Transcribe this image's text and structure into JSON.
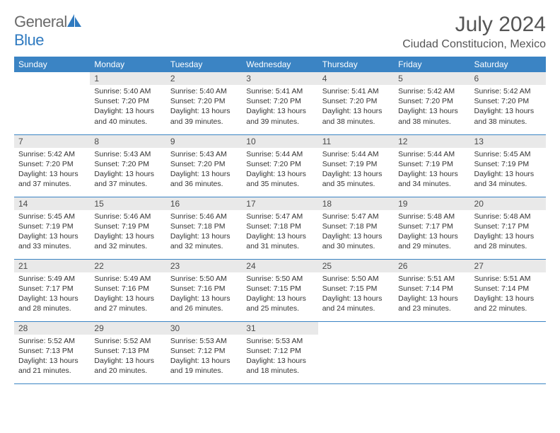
{
  "brand": {
    "part1": "General",
    "part2": "Blue"
  },
  "title": "July 2024",
  "location": "Ciudad Constitucion, Mexico",
  "colors": {
    "header_bg": "#3b84c4",
    "header_text": "#ffffff",
    "daynum_bg": "#e9e9e9",
    "border": "#3b84c4",
    "text": "#333333",
    "title_text": "#555555"
  },
  "weekdays": [
    "Sunday",
    "Monday",
    "Tuesday",
    "Wednesday",
    "Thursday",
    "Friday",
    "Saturday"
  ],
  "start_offset": 1,
  "days": [
    {
      "n": 1,
      "sr": "5:40 AM",
      "ss": "7:20 PM",
      "dl": "13 hours and 40 minutes."
    },
    {
      "n": 2,
      "sr": "5:40 AM",
      "ss": "7:20 PM",
      "dl": "13 hours and 39 minutes."
    },
    {
      "n": 3,
      "sr": "5:41 AM",
      "ss": "7:20 PM",
      "dl": "13 hours and 39 minutes."
    },
    {
      "n": 4,
      "sr": "5:41 AM",
      "ss": "7:20 PM",
      "dl": "13 hours and 38 minutes."
    },
    {
      "n": 5,
      "sr": "5:42 AM",
      "ss": "7:20 PM",
      "dl": "13 hours and 38 minutes."
    },
    {
      "n": 6,
      "sr": "5:42 AM",
      "ss": "7:20 PM",
      "dl": "13 hours and 38 minutes."
    },
    {
      "n": 7,
      "sr": "5:42 AM",
      "ss": "7:20 PM",
      "dl": "13 hours and 37 minutes."
    },
    {
      "n": 8,
      "sr": "5:43 AM",
      "ss": "7:20 PM",
      "dl": "13 hours and 37 minutes."
    },
    {
      "n": 9,
      "sr": "5:43 AM",
      "ss": "7:20 PM",
      "dl": "13 hours and 36 minutes."
    },
    {
      "n": 10,
      "sr": "5:44 AM",
      "ss": "7:20 PM",
      "dl": "13 hours and 35 minutes."
    },
    {
      "n": 11,
      "sr": "5:44 AM",
      "ss": "7:19 PM",
      "dl": "13 hours and 35 minutes."
    },
    {
      "n": 12,
      "sr": "5:44 AM",
      "ss": "7:19 PM",
      "dl": "13 hours and 34 minutes."
    },
    {
      "n": 13,
      "sr": "5:45 AM",
      "ss": "7:19 PM",
      "dl": "13 hours and 34 minutes."
    },
    {
      "n": 14,
      "sr": "5:45 AM",
      "ss": "7:19 PM",
      "dl": "13 hours and 33 minutes."
    },
    {
      "n": 15,
      "sr": "5:46 AM",
      "ss": "7:19 PM",
      "dl": "13 hours and 32 minutes."
    },
    {
      "n": 16,
      "sr": "5:46 AM",
      "ss": "7:18 PM",
      "dl": "13 hours and 32 minutes."
    },
    {
      "n": 17,
      "sr": "5:47 AM",
      "ss": "7:18 PM",
      "dl": "13 hours and 31 minutes."
    },
    {
      "n": 18,
      "sr": "5:47 AM",
      "ss": "7:18 PM",
      "dl": "13 hours and 30 minutes."
    },
    {
      "n": 19,
      "sr": "5:48 AM",
      "ss": "7:17 PM",
      "dl": "13 hours and 29 minutes."
    },
    {
      "n": 20,
      "sr": "5:48 AM",
      "ss": "7:17 PM",
      "dl": "13 hours and 28 minutes."
    },
    {
      "n": 21,
      "sr": "5:49 AM",
      "ss": "7:17 PM",
      "dl": "13 hours and 28 minutes."
    },
    {
      "n": 22,
      "sr": "5:49 AM",
      "ss": "7:16 PM",
      "dl": "13 hours and 27 minutes."
    },
    {
      "n": 23,
      "sr": "5:50 AM",
      "ss": "7:16 PM",
      "dl": "13 hours and 26 minutes."
    },
    {
      "n": 24,
      "sr": "5:50 AM",
      "ss": "7:15 PM",
      "dl": "13 hours and 25 minutes."
    },
    {
      "n": 25,
      "sr": "5:50 AM",
      "ss": "7:15 PM",
      "dl": "13 hours and 24 minutes."
    },
    {
      "n": 26,
      "sr": "5:51 AM",
      "ss": "7:14 PM",
      "dl": "13 hours and 23 minutes."
    },
    {
      "n": 27,
      "sr": "5:51 AM",
      "ss": "7:14 PM",
      "dl": "13 hours and 22 minutes."
    },
    {
      "n": 28,
      "sr": "5:52 AM",
      "ss": "7:13 PM",
      "dl": "13 hours and 21 minutes."
    },
    {
      "n": 29,
      "sr": "5:52 AM",
      "ss": "7:13 PM",
      "dl": "13 hours and 20 minutes."
    },
    {
      "n": 30,
      "sr": "5:53 AM",
      "ss": "7:12 PM",
      "dl": "13 hours and 19 minutes."
    },
    {
      "n": 31,
      "sr": "5:53 AM",
      "ss": "7:12 PM",
      "dl": "13 hours and 18 minutes."
    }
  ],
  "labels": {
    "sunrise": "Sunrise:",
    "sunset": "Sunset:",
    "daylight": "Daylight:"
  }
}
